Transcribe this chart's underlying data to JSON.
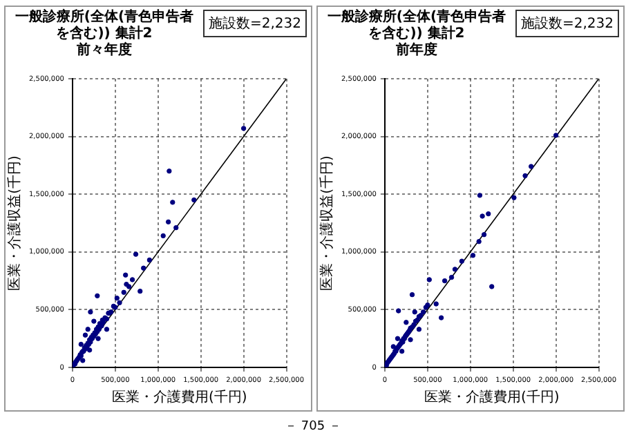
{
  "chart_data": [
    {
      "type": "scatter",
      "title": "一般診療所(全体(青色申告者を含む)) 集計2",
      "subtitle": "前々年度",
      "xlabel": "医業・介護費用(千円)",
      "ylabel": "医業・介護収益(千円)",
      "annotations": [
        "施設数=2,232"
      ],
      "xlim": [
        0,
        2500000
      ],
      "ylim": [
        0,
        2500000
      ],
      "xticks": [
        0,
        {
          "value": 500000,
          "label": "500,000"
        },
        {
          "value": 1000000,
          "label": "1,000,000"
        },
        {
          "value": 1500000,
          "label": "1,500,000"
        },
        {
          "value": 2000000,
          "label": "2,000,000"
        },
        {
          "value": 2500000,
          "label": "2,500,000"
        }
      ],
      "yticks": [
        0,
        {
          "value": 500000,
          "label": "500,000"
        },
        {
          "value": 1000000,
          "label": "1,000,000"
        },
        {
          "value": 1500000,
          "label": "1,500,000"
        },
        {
          "value": 2000000,
          "label": "2,000,000"
        },
        {
          "value": 2500000,
          "label": "2,500,000"
        }
      ],
      "grid": true,
      "marker": "circle",
      "series": [
        {
          "type": "scatter",
          "color": "#000080",
          "x": [
            10000,
            20000,
            30000,
            40000,
            50000,
            60000,
            70000,
            80000,
            90000,
            100000,
            110000,
            120000,
            130000,
            140000,
            150000,
            160000,
            170000,
            180000,
            190000,
            200000,
            210000,
            220000,
            230000,
            240000,
            250000,
            260000,
            270000,
            280000,
            290000,
            300000,
            310000,
            320000,
            340000,
            350000,
            360000,
            380000,
            400000,
            420000,
            450000,
            480000,
            500000,
            520000,
            550000,
            600000,
            620000,
            630000,
            660000,
            700000,
            740000,
            790000,
            830000,
            900000,
            1060000,
            1120000,
            1130000,
            1170000,
            1210000,
            1420000,
            2000000,
            290000,
            210000,
            430000,
            100000,
            150000,
            200000,
            300000,
            400000,
            250000,
            120000,
            180000
          ],
          "values": [
            20000,
            30000,
            30000,
            50000,
            60000,
            70000,
            80000,
            90000,
            110000,
            100000,
            130000,
            140000,
            140000,
            170000,
            160000,
            190000,
            180000,
            210000,
            200000,
            240000,
            220000,
            260000,
            250000,
            280000,
            270000,
            300000,
            290000,
            330000,
            310000,
            350000,
            330000,
            380000,
            360000,
            410000,
            390000,
            430000,
            420000,
            470000,
            480000,
            530000,
            520000,
            600000,
            560000,
            650000,
            800000,
            720000,
            700000,
            760000,
            980000,
            660000,
            860000,
            930000,
            1140000,
            1260000,
            1700000,
            1430000,
            1210000,
            1450000,
            2070000,
            620000,
            480000,
            470000,
            200000,
            280000,
            150000,
            250000,
            330000,
            400000,
            60000,
            330000
          ]
        },
        {
          "type": "line",
          "color": "#000000",
          "marker": "none",
          "x": [
            0,
            2500000
          ],
          "values": [
            0,
            2500000
          ]
        }
      ]
    },
    {
      "type": "scatter",
      "title": "一般診療所(全体(青色申告者を含む)) 集計2",
      "subtitle": "前年度",
      "xlabel": "医業・介護費用(千円)",
      "ylabel": "医業・介護収益(千円)",
      "annotations": [
        "施設数=2,232",
        "－ 705 －"
      ],
      "xlim": [
        0,
        2500000
      ],
      "ylim": [
        0,
        2500000
      ],
      "xticks": [
        0,
        {
          "value": 500000,
          "label": "500,000"
        },
        {
          "value": 1000000,
          "label": "1,000,000"
        },
        {
          "value": 1500000,
          "label": "1,500,000"
        },
        {
          "value": 2000000,
          "label": "2,000,000"
        },
        {
          "value": 2500000,
          "label": "2,500,000"
        }
      ],
      "yticks": [
        0,
        {
          "value": 500000,
          "label": "500,000"
        },
        {
          "value": 1000000,
          "label": "1,000,000"
        },
        {
          "value": 1500000,
          "label": "1,500,000"
        },
        {
          "value": 2000000,
          "label": "2,000,000"
        },
        {
          "value": 2500000,
          "label": "2,500,000"
        }
      ],
      "grid": true,
      "marker": "circle",
      "series": [
        {
          "type": "scatter",
          "color": "#000080",
          "x": [
            10000,
            20000,
            30000,
            40000,
            50000,
            60000,
            70000,
            80000,
            90000,
            100000,
            110000,
            120000,
            130000,
            140000,
            150000,
            160000,
            170000,
            180000,
            190000,
            200000,
            210000,
            220000,
            230000,
            240000,
            250000,
            260000,
            270000,
            280000,
            290000,
            300000,
            320000,
            340000,
            360000,
            380000,
            400000,
            420000,
            450000,
            480000,
            500000,
            520000,
            600000,
            660000,
            700000,
            780000,
            820000,
            900000,
            1030000,
            1100000,
            1110000,
            1140000,
            1160000,
            1210000,
            1250000,
            1510000,
            1640000,
            1710000,
            2000000,
            320000,
            160000,
            100000,
            150000,
            200000,
            300000,
            400000,
            250000,
            350000
          ],
          "values": [
            20000,
            20000,
            40000,
            50000,
            60000,
            70000,
            80000,
            90000,
            100000,
            110000,
            120000,
            140000,
            140000,
            160000,
            170000,
            180000,
            190000,
            200000,
            210000,
            230000,
            220000,
            250000,
            250000,
            270000,
            280000,
            290000,
            300000,
            310000,
            320000,
            340000,
            350000,
            370000,
            400000,
            410000,
            440000,
            450000,
            480000,
            520000,
            540000,
            760000,
            550000,
            430000,
            750000,
            780000,
            850000,
            920000,
            970000,
            1090000,
            1490000,
            1310000,
            1150000,
            1330000,
            700000,
            1470000,
            1660000,
            1740000,
            2010000,
            630000,
            490000,
            180000,
            250000,
            140000,
            240000,
            330000,
            390000,
            480000
          ]
        },
        {
          "type": "line",
          "color": "#000000",
          "marker": "none",
          "x": [
            0,
            2500000
          ],
          "values": [
            0,
            2500000
          ]
        }
      ]
    }
  ]
}
